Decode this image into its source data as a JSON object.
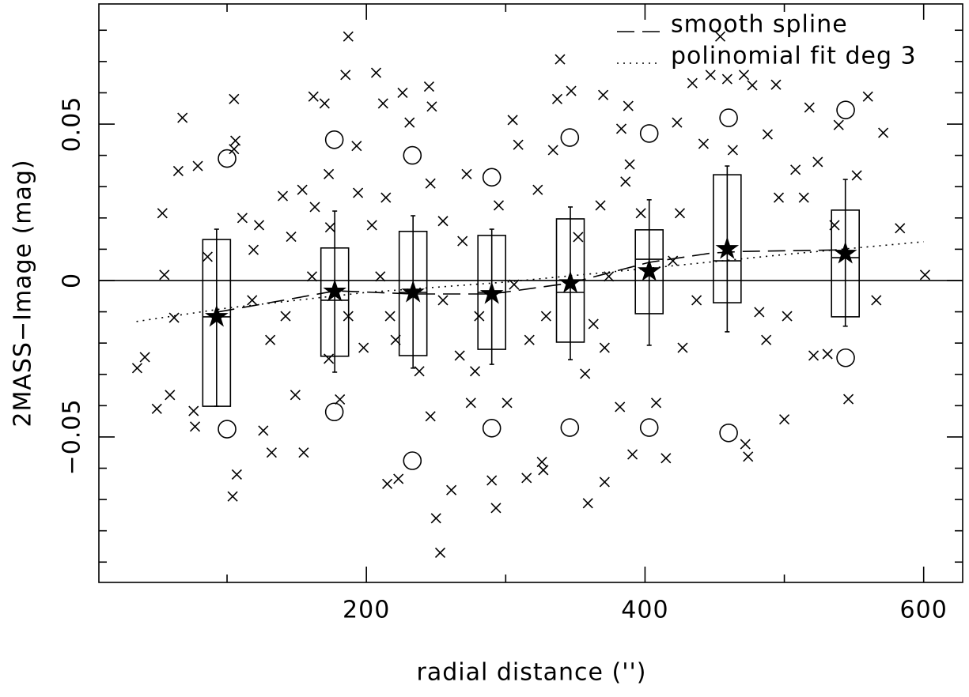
{
  "chart_data": {
    "type": "scatter",
    "xlabel": "radial distance ('')",
    "ylabel": "2MASS−Image (mag)",
    "xlim": [
      8,
      628
    ],
    "ylim": [
      -0.0965,
      0.0884
    ],
    "xticks": [
      200,
      400,
      600
    ],
    "xminorticks": [
      100,
      300,
      500
    ],
    "yticks": [
      {
        "value": -0.05,
        "label": "−0.05"
      },
      0,
      0.05
    ],
    "yminorticks": [
      -0.09,
      -0.08,
      -0.07,
      -0.06,
      -0.04,
      -0.03,
      -0.02,
      -0.01,
      0.01,
      0.02,
      0.03,
      0.04,
      0.06,
      0.07,
      0.08
    ],
    "hline": 0,
    "color": "#000000",
    "legend": "upper right",
    "points": {
      "x": [
        35.5,
        41,
        49.6,
        53.6,
        55,
        59,
        62,
        65,
        68,
        76,
        77,
        79,
        86,
        105,
        104,
        107,
        106,
        105,
        111,
        119,
        123,
        126,
        132,
        140,
        146,
        149,
        154,
        155,
        162,
        163,
        170,
        173,
        174,
        173,
        181,
        187,
        185,
        193,
        194,
        204,
        207,
        212,
        214,
        217,
        215,
        223,
        226,
        231,
        245,
        247,
        246,
        250,
        253,
        246,
        261,
        269,
        275,
        281,
        290,
        293,
        301,
        305,
        309,
        315,
        327,
        326,
        339,
        337,
        347,
        357,
        359,
        370,
        371,
        382,
        383,
        388,
        389,
        391,
        397,
        408,
        415,
        423,
        427,
        434,
        442,
        447,
        454,
        459,
        463,
        471,
        472,
        474,
        477,
        488,
        494,
        496,
        500,
        508,
        514,
        518,
        524,
        536,
        539,
        546,
        552,
        560,
        566,
        571,
        583,
        601,
        531,
        521,
        502,
        487,
        482,
        437,
        420,
        374,
        371,
        363,
        329,
        317,
        306,
        278,
        267,
        255,
        238,
        221,
        210,
        198,
        187,
        161,
        142,
        131,
        118,
        295,
        323,
        352,
        386,
        425,
        272,
        255,
        334,
        368
      ],
      "y": [
        -0.028,
        -0.0245,
        -0.041,
        0.0215,
        0.0018,
        -0.0366,
        -0.0119,
        0.035,
        0.052,
        -0.0417,
        -0.0467,
        0.0366,
        0.0076,
        0.042,
        -0.069,
        -0.062,
        0.0447,
        0.058,
        0.02,
        0.0098,
        0.0177,
        -0.048,
        -0.055,
        0.027,
        0.014,
        -0.0366,
        0.029,
        -0.055,
        0.0588,
        0.0235,
        0.0566,
        0.034,
        0.017,
        -0.025,
        -0.038,
        0.078,
        0.0657,
        0.043,
        0.028,
        0.0177,
        0.0664,
        0.0566,
        0.0265,
        -0.0114,
        -0.065,
        -0.0634,
        0.06,
        0.0505,
        0.062,
        0.0556,
        0.031,
        -0.076,
        -0.087,
        -0.0434,
        -0.067,
        0.0126,
        -0.0391,
        -0.0114,
        -0.0639,
        -0.0727,
        -0.0391,
        0.0513,
        0.0434,
        -0.0631,
        -0.0606,
        -0.058,
        0.0707,
        0.058,
        0.0606,
        -0.0298,
        -0.0712,
        0.0593,
        -0.0644,
        -0.0404,
        0.0485,
        0.0558,
        0.0371,
        -0.0556,
        0.0215,
        -0.0391,
        -0.0568,
        0.0505,
        -0.0215,
        0.0631,
        0.0437,
        0.0657,
        0.078,
        0.0644,
        0.0417,
        0.0657,
        -0.0523,
        -0.0563,
        0.0624,
        0.0467,
        0.0626,
        0.0265,
        -0.0444,
        0.0354,
        0.0265,
        0.0553,
        0.0379,
        0.0177,
        0.0497,
        -0.0379,
        0.0336,
        0.0588,
        -0.0063,
        0.0472,
        0.0167,
        0.0018,
        -0.0235,
        -0.024,
        -0.0114,
        -0.019,
        -0.0101,
        -0.0063,
        0.0063,
        0.0013,
        -0.0215,
        -0.0139,
        -0.0114,
        -0.019,
        -0.0013,
        -0.029,
        -0.024,
        -0.0063,
        -0.029,
        -0.019,
        0.0013,
        -0.0215,
        -0.0114,
        0.0013,
        -0.0114,
        -0.019,
        -0.0063,
        0.024,
        0.029,
        0.0139,
        0.0316,
        0.0215,
        0.034,
        0.019,
        0.0417,
        0.024
      ]
    },
    "outliers": {
      "x": [
        100,
        100,
        177,
        177,
        233,
        233,
        290,
        290,
        346,
        346,
        403,
        403,
        460,
        460,
        544,
        544
      ],
      "y": [
        0.039,
        -0.0475,
        0.045,
        -0.042,
        0.04,
        -0.0576,
        0.033,
        -0.0472,
        0.0457,
        -0.047,
        0.047,
        -0.047,
        0.052,
        -0.0487,
        0.0545,
        -0.0247
      ]
    },
    "boxes": [
      {
        "x": 92.5,
        "low": -0.0402,
        "q1": -0.0402,
        "median": -0.0116,
        "q3": 0.0131,
        "high": 0.0164,
        "mean": -0.0116
      },
      {
        "x": 177.3,
        "low": -0.0293,
        "q1": -0.0242,
        "median": -0.0063,
        "q3": 0.0104,
        "high": 0.0222,
        "mean": -0.0035
      },
      {
        "x": 233.5,
        "low": -0.028,
        "q1": -0.024,
        "median": -0.0038,
        "q3": 0.0157,
        "high": 0.0207,
        "mean": -0.0038
      },
      {
        "x": 290,
        "low": -0.0268,
        "q1": -0.022,
        "median": -0.0038,
        "q3": 0.0144,
        "high": 0.0164,
        "mean": -0.0043
      },
      {
        "x": 346.4,
        "low": -0.0253,
        "q1": -0.0197,
        "median": -0.0038,
        "q3": 0.0197,
        "high": 0.0235,
        "mean": -0.0008
      },
      {
        "x": 403,
        "low": -0.0207,
        "q1": -0.0106,
        "median": 0.0068,
        "q3": 0.0162,
        "high": 0.0258,
        "mean": 0.003
      },
      {
        "x": 459,
        "low": -0.0164,
        "q1": -0.0071,
        "median": 0.0063,
        "q3": 0.0338,
        "high": 0.0366,
        "mean": 0.0101
      },
      {
        "x": 543.8,
        "low": -0.0146,
        "q1": -0.0116,
        "median": 0.0073,
        "q3": 0.0225,
        "high": 0.0323,
        "mean": 0.0086
      }
    ],
    "series": [
      {
        "name": "smooth spline",
        "style": "dashed",
        "x": [
          92.9,
          178,
          233.5,
          290,
          346.4,
          403,
          448,
          471,
          544
        ],
        "y": [
          -0.0101,
          -0.0033,
          -0.0043,
          -0.0043,
          -0.0008,
          0.0058,
          0.0088,
          0.0093,
          0.0098
        ]
      },
      {
        "name": "polinomial fit deg 3",
        "style": "dotted",
        "x": [
          35,
          100,
          200,
          300,
          400,
          500,
          600
        ],
        "y": [
          -0.0131,
          -0.0088,
          -0.0038,
          -0.0005,
          0.0038,
          0.0083,
          0.0124
        ]
      }
    ]
  }
}
